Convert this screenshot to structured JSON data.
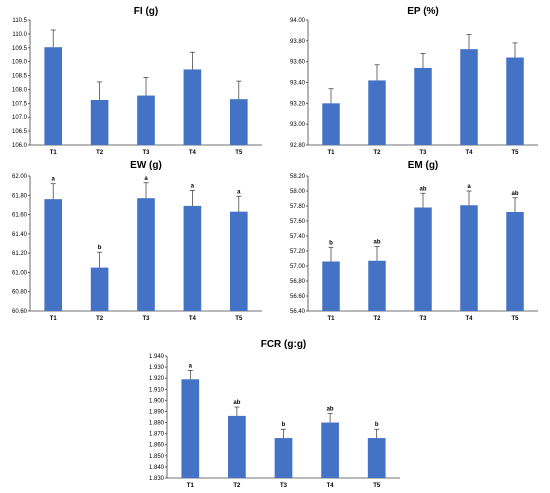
{
  "chart_data": [
    {
      "type": "bar",
      "title": "FI (g)",
      "categories": [
        "T1",
        "T2",
        "T3",
        "T4",
        "T5"
      ],
      "values": [
        109.52,
        107.62,
        107.78,
        108.72,
        107.65
      ],
      "errors": [
        0.62,
        0.65,
        0.65,
        0.62,
        0.65
      ],
      "ylim": [
        106.0,
        110.5
      ],
      "yticks": [
        "106.0",
        "106.5",
        "107.0",
        "107.5",
        "108.0",
        "108.5",
        "109.0",
        "109.5",
        "110.0",
        "110.5"
      ],
      "letters": [
        "",
        "",
        "",
        "",
        ""
      ],
      "color": "#4472C4"
    },
    {
      "type": "bar",
      "title": "EP (%)",
      "categories": [
        "T1",
        "T2",
        "T3",
        "T4",
        "T5"
      ],
      "values": [
        93.2,
        93.42,
        93.54,
        93.72,
        93.64
      ],
      "errors": [
        0.14,
        0.15,
        0.14,
        0.14,
        0.14
      ],
      "ylim": [
        92.8,
        94.0
      ],
      "yticks": [
        "92.80",
        "93.00",
        "93.20",
        "93.40",
        "93.60",
        "93.80",
        "94.00"
      ],
      "letters": [
        "",
        "",
        "",
        "",
        ""
      ],
      "color": "#4472C4"
    },
    {
      "type": "bar",
      "title": "EW (g)",
      "categories": [
        "T1",
        "T2",
        "T3",
        "T4",
        "T5"
      ],
      "values": [
        61.76,
        61.05,
        61.77,
        61.69,
        61.63
      ],
      "errors": [
        0.16,
        0.16,
        0.16,
        0.16,
        0.16
      ],
      "ylim": [
        60.6,
        62.0
      ],
      "yticks": [
        "60.60",
        "60.80",
        "61.00",
        "61.20",
        "61.40",
        "61.60",
        "61.80",
        "62.00"
      ],
      "letters": [
        "a",
        "b",
        "a",
        "a",
        "a"
      ],
      "color": "#4472C4"
    },
    {
      "type": "bar",
      "title": "EM (g)",
      "categories": [
        "T1",
        "T2",
        "T3",
        "T4",
        "T5"
      ],
      "values": [
        57.06,
        57.07,
        57.78,
        57.81,
        57.72
      ],
      "errors": [
        0.19,
        0.19,
        0.19,
        0.19,
        0.19
      ],
      "ylim": [
        56.4,
        58.2
      ],
      "yticks": [
        "56.40",
        "56.60",
        "56.80",
        "57.00",
        "57.20",
        "57.40",
        "57.60",
        "57.80",
        "58.00",
        "58.20"
      ],
      "letters": [
        "b",
        "ab",
        "ab",
        "a",
        "ab"
      ],
      "color": "#4472C4"
    },
    {
      "type": "bar",
      "title": "FCR (g:g)",
      "categories": [
        "T1",
        "T2",
        "T3",
        "T4",
        "T5"
      ],
      "values": [
        1.919,
        1.886,
        1.866,
        1.88,
        1.866
      ],
      "errors": [
        0.008,
        0.008,
        0.008,
        0.008,
        0.008
      ],
      "ylim": [
        1.83,
        1.94
      ],
      "yticks": [
        "1.830",
        "1.840",
        "1.850",
        "1.860",
        "1.870",
        "1.880",
        "1.890",
        "1.900",
        "1.910",
        "1.920",
        "1.930",
        "1.940"
      ],
      "letters": [
        "a",
        "ab",
        "b",
        "ab",
        "b"
      ],
      "color": "#4472C4"
    }
  ]
}
